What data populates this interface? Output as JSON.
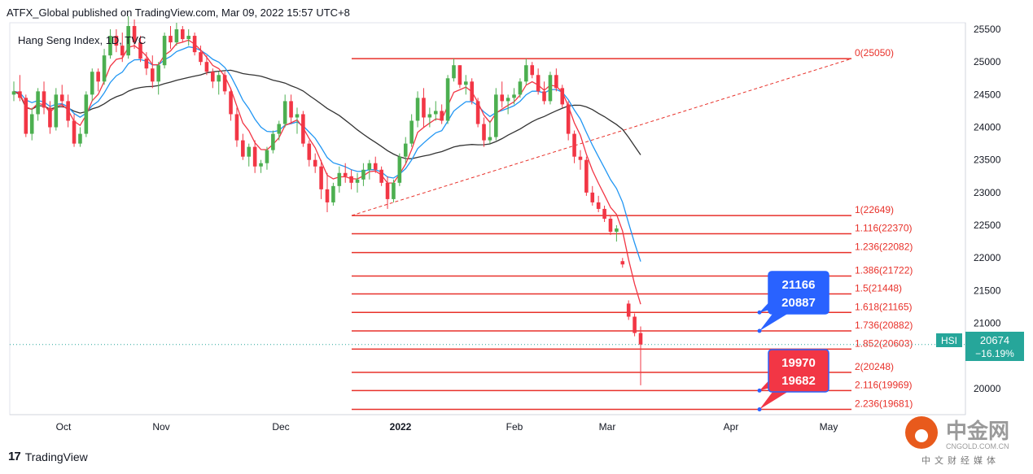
{
  "header": {
    "publisher": "ATFX_Global published on TradingView.com, Mar 09, 2022 15:57 UTC+8"
  },
  "symbol": {
    "label": "Hang Seng Index, 1D, TVC"
  },
  "footer": {
    "brand": "TradingView"
  },
  "watermark": {
    "name": "中金网",
    "url": "CNGOLD.COM.CN",
    "tagline": "中文财经媒体"
  },
  "colors": {
    "up": "#4caf50",
    "down": "#f23645",
    "fib": "#e8312a",
    "ema_fast": "#f23645",
    "ema_mid": "#2196f3",
    "ma_slow": "#333333",
    "blue_box": "#2962ff",
    "red_box": "#f23645",
    "price_tag": "#26a69a"
  },
  "price_tag": {
    "symbol": "HSI",
    "value": "20674",
    "change": "−16.19%"
  },
  "callouts": [
    {
      "line1": "21166",
      "line2": "20887",
      "color": "blue"
    },
    {
      "line1": "19970",
      "line2": "19682",
      "color": "red"
    }
  ],
  "chart_data": {
    "type": "candlestick",
    "title": "",
    "x_labels": [
      "Oct",
      "Nov",
      "Dec",
      "2022",
      "Feb",
      "Mar",
      "Apr",
      "May"
    ],
    "y_ticks": [
      25500,
      25000,
      24500,
      24000,
      23500,
      23000,
      22500,
      22000,
      21500,
      21000,
      20500,
      20000
    ],
    "y_range": [
      19680,
      25500
    ],
    "fib_levels": [
      {
        "label": "0(25050)",
        "value": 25050
      },
      {
        "label": "1(22649)",
        "value": 22649
      },
      {
        "label": "1.116(22370)",
        "value": 22370
      },
      {
        "label": "1.236(22082)",
        "value": 22082
      },
      {
        "label": "1.386(21722)",
        "value": 21722
      },
      {
        "label": "1.5(21448)",
        "value": 21448
      },
      {
        "label": "1.618(21165)",
        "value": 21165
      },
      {
        "label": "1.736(20882)",
        "value": 20882
      },
      {
        "label": "1.852(20603)",
        "value": 20603
      },
      {
        "label": "2(20248)",
        "value": 20248
      },
      {
        "label": "2.116(19969)",
        "value": 19969
      },
      {
        "label": "2.236(19681)",
        "value": 19681
      }
    ],
    "last_price": 20674,
    "change_pct": -16.19,
    "trendline": {
      "from": 22649,
      "to": 25050
    },
    "candles": [
      [
        24500,
        24700,
        24400,
        24550
      ],
      [
        24550,
        24800,
        24400,
        24450
      ],
      [
        24450,
        24500,
        23850,
        23900
      ],
      [
        23900,
        24300,
        23800,
        24200
      ],
      [
        24200,
        24600,
        24100,
        24550
      ],
      [
        24550,
        24700,
        24200,
        24300
      ],
      [
        24300,
        24400,
        23900,
        24000
      ],
      [
        24000,
        24600,
        23950,
        24500
      ],
      [
        24500,
        24650,
        24300,
        24400
      ],
      [
        24400,
        24500,
        24000,
        24100
      ],
      [
        24100,
        24200,
        23700,
        23750
      ],
      [
        23750,
        24000,
        23700,
        23900
      ],
      [
        23900,
        24550,
        23850,
        24500
      ],
      [
        24500,
        24900,
        24400,
        24850
      ],
      [
        24850,
        24900,
        24550,
        24700
      ],
      [
        24700,
        25200,
        24650,
        25100
      ],
      [
        25100,
        25500,
        25050,
        25400
      ],
      [
        25400,
        25500,
        25150,
        25250
      ],
      [
        25250,
        25450,
        25000,
        25100
      ],
      [
        25100,
        25700,
        25050,
        25550
      ],
      [
        25550,
        25650,
        25200,
        25300
      ],
      [
        25300,
        25400,
        25000,
        25050
      ],
      [
        25050,
        25150,
        24800,
        24900
      ],
      [
        24900,
        25100,
        24600,
        24700
      ],
      [
        24700,
        25000,
        24500,
        24950
      ],
      [
        24950,
        25450,
        24900,
        25400
      ],
      [
        25400,
        25550,
        25200,
        25300
      ],
      [
        25300,
        25600,
        25250,
        25500
      ],
      [
        25500,
        25550,
        25300,
        25350
      ],
      [
        25350,
        25500,
        25250,
        25400
      ],
      [
        25400,
        25450,
        25100,
        25150
      ],
      [
        25150,
        25250,
        24950,
        25000
      ],
      [
        25000,
        25100,
        24800,
        24850
      ],
      [
        24850,
        24900,
        24600,
        24700
      ],
      [
        24700,
        24850,
        24500,
        24800
      ],
      [
        24800,
        24850,
        24500,
        24550
      ],
      [
        24550,
        24600,
        24100,
        24200
      ],
      [
        24200,
        24300,
        23700,
        23800
      ],
      [
        23800,
        23900,
        23500,
        23550
      ],
      [
        23550,
        23750,
        23400,
        23700
      ],
      [
        23700,
        23800,
        23300,
        23400
      ],
      [
        23400,
        23500,
        23300,
        23450
      ],
      [
        23450,
        23700,
        23350,
        23650
      ],
      [
        23650,
        23950,
        23600,
        23900
      ],
      [
        23900,
        24100,
        23800,
        24050
      ],
      [
        24050,
        24500,
        24000,
        24400
      ],
      [
        24400,
        24500,
        24050,
        24150
      ],
      [
        24150,
        24300,
        23900,
        24200
      ],
      [
        24200,
        24250,
        23700,
        23750
      ],
      [
        23750,
        23800,
        23400,
        23500
      ],
      [
        23500,
        23600,
        23300,
        23400
      ],
      [
        23400,
        23500,
        22900,
        23050
      ],
      [
        23050,
        23300,
        22700,
        22850
      ],
      [
        22850,
        23150,
        22800,
        23100
      ],
      [
        23100,
        23400,
        23000,
        23300
      ],
      [
        23300,
        23450,
        23150,
        23250
      ],
      [
        23250,
        23350,
        23050,
        23150
      ],
      [
        23150,
        23300,
        23000,
        23200
      ],
      [
        23200,
        23450,
        23100,
        23350
      ],
      [
        23350,
        23500,
        23200,
        23450
      ],
      [
        23450,
        23550,
        23300,
        23350
      ],
      [
        23350,
        23400,
        23100,
        23150
      ],
      [
        23150,
        23250,
        22750,
        22900
      ],
      [
        22900,
        23200,
        22850,
        23150
      ],
      [
        23150,
        23600,
        23100,
        23550
      ],
      [
        23550,
        23850,
        23450,
        23750
      ],
      [
        23750,
        24200,
        23700,
        24100
      ],
      [
        24100,
        24550,
        24000,
        24450
      ],
      [
        24450,
        24600,
        24000,
        24150
      ],
      [
        24150,
        24300,
        24000,
        24200
      ],
      [
        24200,
        24400,
        24100,
        24250
      ],
      [
        24250,
        24350,
        24050,
        24100
      ],
      [
        24100,
        24800,
        24050,
        24750
      ],
      [
        24750,
        25050,
        24700,
        24950
      ],
      [
        24950,
        24950,
        24600,
        24650
      ],
      [
        24650,
        24800,
        24500,
        24700
      ],
      [
        24700,
        24750,
        24350,
        24400
      ],
      [
        24400,
        24450,
        24000,
        24050
      ],
      [
        24050,
        24150,
        23700,
        23800
      ],
      [
        23800,
        24100,
        23750,
        23850
      ],
      [
        23850,
        24600,
        23800,
        24500
      ],
      [
        24500,
        24700,
        24300,
        24400
      ],
      [
        24400,
        24500,
        24200,
        24450
      ],
      [
        24450,
        24600,
        24350,
        24500
      ],
      [
        24500,
        24750,
        24450,
        24700
      ],
      [
        24700,
        25050,
        24650,
        24950
      ],
      [
        24950,
        25000,
        24750,
        24800
      ],
      [
        24800,
        24900,
        24500,
        24550
      ],
      [
        24550,
        24700,
        24350,
        24400
      ],
      [
        24400,
        24850,
        24350,
        24800
      ],
      [
        24800,
        24900,
        24550,
        24600
      ],
      [
        24600,
        24650,
        24300,
        24350
      ],
      [
        24350,
        24400,
        23800,
        23900
      ],
      [
        23900,
        23950,
        23450,
        23550
      ],
      [
        23550,
        23650,
        23350,
        23500
      ],
      [
        23500,
        23550,
        22950,
        23000
      ],
      [
        23000,
        23100,
        22800,
        22850
      ],
      [
        22850,
        22950,
        22700,
        22750
      ],
      [
        22750,
        22800,
        22550,
        22600
      ],
      [
        22600,
        22650,
        22350,
        22400
      ],
      [
        22400,
        22500,
        22250,
        22450
      ],
      [
        21950,
        22000,
        21850,
        21900
      ],
      [
        21300,
        21350,
        21050,
        21100
      ],
      [
        21100,
        21150,
        20800,
        20850
      ],
      [
        20850,
        20950,
        20050,
        20674
      ]
    ]
  }
}
